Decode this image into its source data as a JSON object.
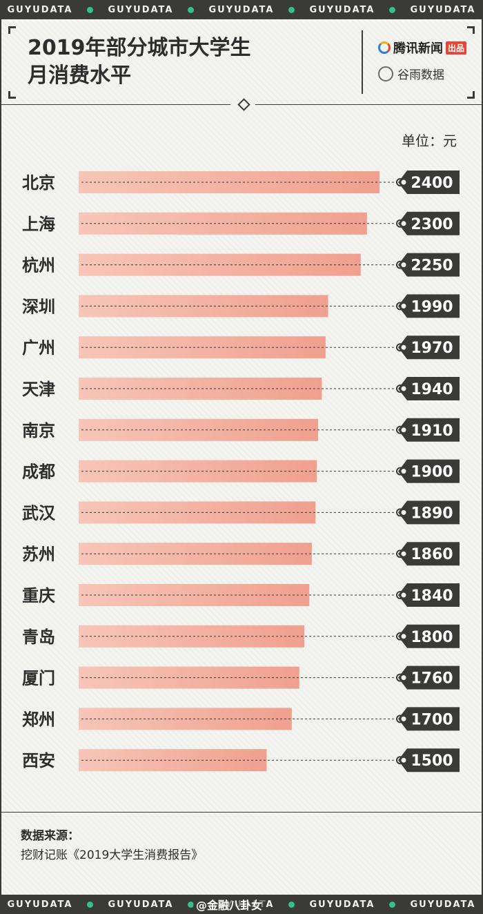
{
  "strip_text": "GUYUDATA",
  "header": {
    "title_line1": "2019年部分城市大学生",
    "title_line2": "月消费水平",
    "logo1_text": "腾讯新闻",
    "logo1_badge": "出品",
    "logo2_text": "谷雨数据"
  },
  "unit_label": "单位：元",
  "chart_data": {
    "type": "bar",
    "orientation": "horizontal",
    "categories": [
      "北京",
      "上海",
      "杭州",
      "深圳",
      "广州",
      "天津",
      "南京",
      "成都",
      "武汉",
      "苏州",
      "重庆",
      "青岛",
      "厦门",
      "郑州",
      "西安"
    ],
    "values": [
      2400,
      2300,
      2250,
      1990,
      1970,
      1940,
      1910,
      1900,
      1890,
      1860,
      1840,
      1800,
      1760,
      1700,
      1500
    ],
    "ylabel": "单位：元",
    "bar_color": "#f0a08e",
    "label_bg": "#3a3a38"
  },
  "source": {
    "label": "数据来源：",
    "text": "挖财记账《2019大学生消费报告》"
  },
  "watermark": "@金融八卦女"
}
